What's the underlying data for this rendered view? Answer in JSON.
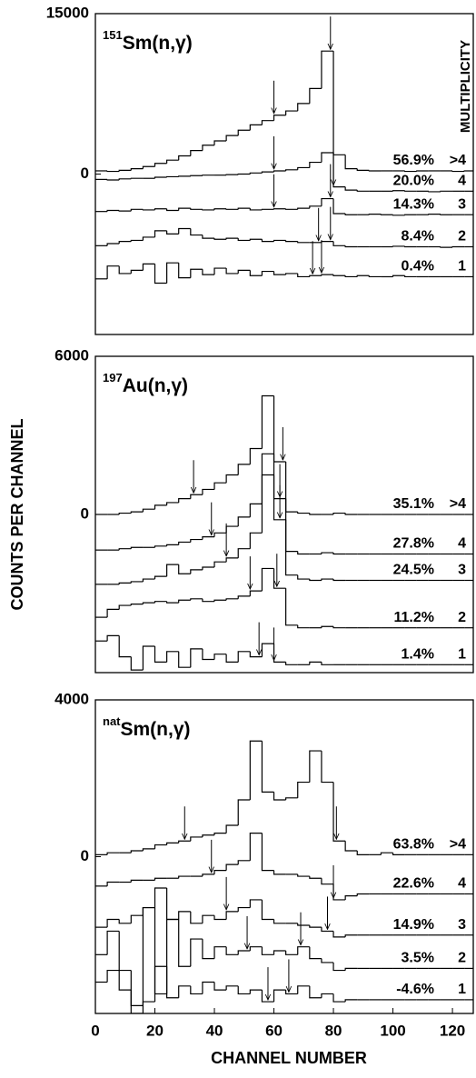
{
  "chart_data": [
    {
      "type": "step",
      "title_prefix": "151",
      "title": "Sm(n,γ)",
      "annotation": "MULTIPLICITY",
      "color": "#000000",
      "xlim": [
        0,
        127
      ],
      "ylim": [
        -15000,
        15000
      ],
      "yticks": [
        0,
        15000
      ],
      "x": [
        0,
        4,
        8,
        12,
        16,
        20,
        24,
        28,
        32,
        36,
        40,
        44,
        48,
        52,
        56,
        60,
        64,
        68,
        72,
        76,
        80,
        84,
        88,
        92,
        96,
        100,
        104,
        108,
        112,
        116,
        120,
        124
      ],
      "series": [
        {
          "name": ">4",
          "fraction": "56.9%",
          "arrows": [
            60,
            79
          ],
          "values": [
            300,
            250,
            350,
            500,
            700,
            1000,
            1300,
            1700,
            2200,
            2700,
            3100,
            3600,
            4100,
            4600,
            5000,
            5500,
            5900,
            6600,
            8000,
            11500,
            1800,
            500,
            350,
            300,
            300,
            300,
            250,
            300,
            300,
            300,
            250,
            300
          ]
        },
        {
          "name": "4",
          "fraction": "20.0%",
          "arrows": [
            60,
            80
          ],
          "values": [
            -500,
            -550,
            -450,
            -400,
            -400,
            -300,
            -250,
            -200,
            -150,
            -100,
            -100,
            -50,
            0,
            100,
            200,
            300,
            400,
            600,
            1100,
            2000,
            -1200,
            -1500,
            -1600,
            -1600,
            -1600,
            -1550,
            -1600,
            -1600,
            -1650,
            -1600,
            -1600,
            -1600
          ]
        },
        {
          "name": "3",
          "fraction": "14.3%",
          "arrows": [
            60,
            79
          ],
          "values": [
            -3500,
            -3400,
            -3450,
            -3300,
            -3350,
            -3250,
            -3400,
            -3200,
            -3300,
            -3350,
            -3250,
            -3300,
            -3200,
            -3350,
            -3300,
            -3250,
            -3300,
            -3200,
            -3000,
            -2300,
            -3700,
            -3800,
            -3800,
            -3750,
            -3800,
            -3850,
            -3800,
            -3800,
            -3750,
            -3800,
            -3800,
            -3800
          ]
        },
        {
          "name": "2",
          "fraction": "8.4%",
          "arrows": [
            75,
            79
          ],
          "values": [
            -6700,
            -6500,
            -6300,
            -6200,
            -5900,
            -5300,
            -5600,
            -5100,
            -5700,
            -6000,
            -6100,
            -6000,
            -6200,
            -6100,
            -6300,
            -6200,
            -6300,
            -6400,
            -6400,
            -6300,
            -6700,
            -6800,
            -6800,
            -6800,
            -6800,
            -6750,
            -6800,
            -6800,
            -6800,
            -6850,
            -6800,
            -6800
          ]
        },
        {
          "name": "1",
          "fraction": "0.4%",
          "arrows": [
            73,
            76
          ],
          "values": [
            -9800,
            -8600,
            -9300,
            -9000,
            -8400,
            -10200,
            -8300,
            -9700,
            -8900,
            -9400,
            -8800,
            -9300,
            -9000,
            -9500,
            -9100,
            -9400,
            -9300,
            -9600,
            -9500,
            -9400,
            -9500,
            -9600,
            -9500,
            -9600,
            -9600,
            -9500,
            -9600,
            -9600,
            -9600,
            -9600,
            -9600,
            -9600
          ]
        }
      ]
    },
    {
      "type": "step",
      "title_prefix": "197",
      "title": "Au(n,γ)",
      "ylabel": "COUNTS PER CHANNEL",
      "color": "#000000",
      "xlim": [
        0,
        127
      ],
      "ylim": [
        -6000,
        6000
      ],
      "yticks": [
        0,
        6000
      ],
      "x": [
        0,
        4,
        8,
        12,
        16,
        20,
        24,
        28,
        32,
        36,
        40,
        44,
        48,
        52,
        56,
        60,
        64,
        68,
        72,
        76,
        80,
        84,
        88,
        92,
        96,
        100,
        104,
        108,
        112,
        116,
        120,
        124
      ],
      "series": [
        {
          "name": ">4",
          "fraction": "35.1%",
          "arrows": [
            33,
            63
          ],
          "values": [
            0,
            0,
            50,
            100,
            200,
            350,
            450,
            600,
            750,
            950,
            1200,
            1500,
            1900,
            2500,
            4500,
            2000,
            100,
            50,
            0,
            0,
            50,
            0,
            0,
            0,
            0,
            0,
            0,
            0,
            0,
            0,
            0,
            0
          ]
        },
        {
          "name": "4",
          "fraction": "27.8%",
          "arrows": [
            39,
            62
          ],
          "values": [
            -1350,
            -1350,
            -1300,
            -1250,
            -1250,
            -1200,
            -1150,
            -1050,
            -950,
            -850,
            -700,
            -450,
            -100,
            400,
            2300,
            600,
            -1400,
            -1500,
            -1500,
            -1450,
            -1500,
            -1500,
            -1500,
            -1500,
            -1500,
            -1500,
            -1500,
            -1500,
            -1500,
            -1500,
            -1500,
            -1500
          ]
        },
        {
          "name": "3",
          "fraction": "24.5%",
          "arrows": [
            44,
            62
          ],
          "values": [
            -2650,
            -2650,
            -2600,
            -2550,
            -2450,
            -2350,
            -1900,
            -2250,
            -2100,
            -2000,
            -1800,
            -1650,
            -1300,
            -700,
            1500,
            -200,
            -2300,
            -2450,
            -2500,
            -2450,
            -2500,
            -2500,
            -2500,
            -2500,
            -2500,
            -2500,
            -2500,
            -2500,
            -2500,
            -2500,
            -2500,
            -2500
          ]
        },
        {
          "name": "2",
          "fraction": "11.2%",
          "arrows": [
            52,
            61
          ],
          "values": [
            -3900,
            -3600,
            -3450,
            -3400,
            -3350,
            -3300,
            -3350,
            -3250,
            -3200,
            -3300,
            -3250,
            -3200,
            -3100,
            -2900,
            -2050,
            -2800,
            -4200,
            -4300,
            -4300,
            -4250,
            -4300,
            -4300,
            -4300,
            -4300,
            -4300,
            -4300,
            -4300,
            -4300,
            -4300,
            -4300,
            -4300,
            -4300
          ]
        },
        {
          "name": "1",
          "fraction": "1.4%",
          "arrows": [
            55,
            60
          ],
          "values": [
            -4800,
            -4600,
            -5400,
            -5900,
            -5000,
            -5600,
            -5200,
            -5800,
            -5100,
            -5500,
            -5300,
            -5600,
            -5200,
            -5400,
            -4900,
            -5600,
            -5700,
            -5700,
            -5600,
            -5700,
            -5700,
            -5700,
            -5700,
            -5700,
            -5700,
            -5700,
            -5700,
            -5700,
            -5700,
            -5700,
            -5700,
            -5700
          ]
        }
      ]
    },
    {
      "type": "step",
      "title_prefix": "nat",
      "title": "Sm(n,γ)",
      "xlabel": "CHANNEL NUMBER",
      "color": "#000000",
      "xlim": [
        0,
        127
      ],
      "ylim": [
        -4000,
        4000
      ],
      "yticks": [
        0,
        4000
      ],
      "xticks": [
        0,
        20,
        40,
        60,
        80,
        100,
        120
      ],
      "x": [
        0,
        4,
        8,
        12,
        16,
        20,
        24,
        28,
        32,
        36,
        40,
        44,
        48,
        52,
        56,
        60,
        64,
        68,
        72,
        76,
        80,
        84,
        88,
        92,
        96,
        100,
        104,
        108,
        112,
        116,
        120,
        124
      ],
      "series": [
        {
          "name": ">4",
          "fraction": "63.8%",
          "arrows": [
            30,
            81
          ],
          "values": [
            50,
            100,
            100,
            150,
            200,
            300,
            350,
            400,
            500,
            550,
            600,
            800,
            1450,
            2950,
            1650,
            1450,
            1500,
            1900,
            2700,
            1900,
            400,
            150,
            50,
            50,
            100,
            50,
            50,
            50,
            50,
            50,
            50,
            50
          ]
        },
        {
          "name": "4",
          "fraction": "22.6%",
          "arrows": [
            39,
            80
          ],
          "values": [
            -750,
            -650,
            -650,
            -600,
            -600,
            -550,
            -550,
            -500,
            -500,
            -450,
            -350,
            -200,
            -100,
            600,
            -350,
            -450,
            -450,
            -500,
            -550,
            -700,
            -1100,
            -1000,
            -950,
            -950,
            -950,
            -950,
            -950,
            -950,
            -950,
            -950,
            -950,
            -950
          ]
        },
        {
          "name": "3",
          "fraction": "14.9%",
          "arrows": [
            44,
            78
          ],
          "values": [
            -1800,
            -1600,
            -1700,
            -1500,
            -1300,
            -800,
            -1600,
            -1400,
            -1700,
            -1500,
            -1600,
            -1400,
            -1300,
            -1100,
            -1600,
            -1700,
            -1700,
            -1750,
            -1800,
            -1900,
            -2050,
            -2000,
            -2000,
            -2000,
            -2000,
            -2000,
            -2000,
            -2000,
            -2000,
            -2000,
            -2000,
            -2000
          ]
        },
        {
          "name": "2",
          "fraction": "3.5%",
          "arrows": [
            51,
            69
          ],
          "values": [
            -2500,
            -1900,
            -2900,
            -3800,
            -1300,
            -3500,
            -1600,
            -2800,
            -2100,
            -2600,
            -2300,
            -2500,
            -2400,
            -2300,
            -2500,
            -2400,
            -2500,
            -2300,
            -2600,
            -2700,
            -2900,
            -2850,
            -2850,
            -2850,
            -2850,
            -2850,
            -2850,
            -2850,
            -2850,
            -2850,
            -2850,
            -2850
          ]
        },
        {
          "name": "1",
          "fraction": "-4.6%",
          "arrows": [
            58,
            65
          ],
          "values": [
            -3200,
            -2900,
            -3400,
            -4000,
            -3700,
            -2800,
            -3600,
            -3300,
            -3500,
            -3200,
            -3400,
            -3300,
            -3500,
            -3400,
            -3700,
            -3400,
            -3500,
            -3300,
            -3600,
            -3500,
            -3700,
            -3650,
            -3650,
            -3650,
            -3650,
            -3650,
            -3650,
            -3650,
            -3650,
            -3650,
            -3650,
            -3650
          ]
        }
      ]
    }
  ]
}
